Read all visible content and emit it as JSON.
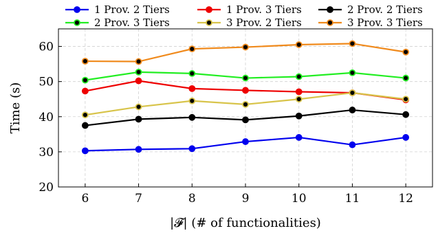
{
  "chart_data": {
    "type": "line",
    "xlabel": "|𝓕| (# of functionalities)",
    "ylabel": "Time (s)",
    "x": [
      6,
      7,
      8,
      9,
      10,
      11,
      12
    ],
    "xlim": [
      5.5,
      12.5
    ],
    "ylim": [
      20,
      65
    ],
    "yticks": [
      20,
      30,
      40,
      50,
      60
    ],
    "grid": true,
    "legend_position": "top",
    "series": [
      {
        "name": "1 Prov. 2 Tiers",
        "color": "#0000ee",
        "marker_fill": "#0000ee",
        "values": [
          30.3,
          30.7,
          30.9,
          32.9,
          34.1,
          32.0,
          34.1
        ]
      },
      {
        "name": "1 Prov. 3 Tiers",
        "color": "#ee0000",
        "marker_fill": "#ee0000",
        "values": [
          47.3,
          50.2,
          48.0,
          47.5,
          47.1,
          46.8,
          44.8
        ]
      },
      {
        "name": "2 Prov. 2 Tiers",
        "color": "#000000",
        "marker_fill": "#000000",
        "values": [
          37.5,
          39.3,
          39.8,
          39.1,
          40.2,
          41.9,
          40.6
        ]
      },
      {
        "name": "2 Prov. 3 Tiers",
        "color": "#22ee22",
        "marker_fill": "#000000",
        "values": [
          50.4,
          52.7,
          52.3,
          51.0,
          51.4,
          52.5,
          51.0
        ]
      },
      {
        "name": "3 Prov. 2 Tiers",
        "color": "#d8c44a",
        "marker_fill": "#000000",
        "values": [
          40.5,
          42.8,
          44.5,
          43.5,
          45.0,
          46.8,
          45.0
        ]
      },
      {
        "name": "3 Prov. 3 Tiers",
        "color": "#f08a1c",
        "marker_fill": "#000000",
        "values": [
          55.8,
          55.7,
          59.3,
          59.8,
          60.5,
          60.8,
          58.4
        ]
      }
    ]
  }
}
